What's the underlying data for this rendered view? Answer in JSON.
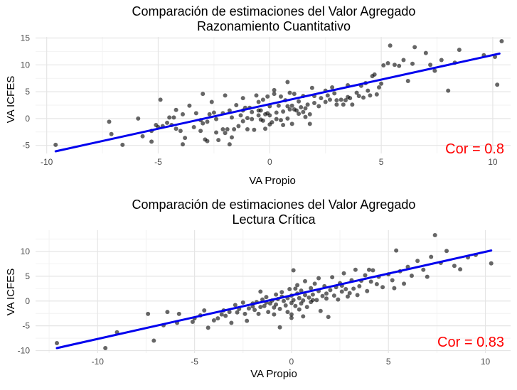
{
  "chart_data": [
    {
      "type": "scatter",
      "title": "Comparación de estimaciones del Valor Agregado",
      "subtitle": "Razonamiento Cuantitativo",
      "xlabel": "VA Propio",
      "ylabel": "VA ICFES",
      "xlim": [
        -10.5,
        10.8
      ],
      "ylim": [
        -6.5,
        15.2
      ],
      "xticks": [
        -10,
        -5,
        0,
        5,
        10
      ],
      "yticks": [
        -5,
        0,
        5,
        10,
        15
      ],
      "grid": true,
      "colors": {
        "points": "#000000",
        "line": "#0000ee",
        "annotation": "#ff0000"
      },
      "annotation": "Cor = 0.8",
      "fit_line": {
        "x": [
          -9.6,
          10.3
        ],
        "y": [
          -6.1,
          12.1
        ]
      },
      "points": [
        [
          -9.6,
          -4.9
        ],
        [
          -7.2,
          -0.6
        ],
        [
          -7.1,
          -2.9
        ],
        [
          -6.6,
          -4.9
        ],
        [
          -5.9,
          0.0
        ],
        [
          -5.7,
          -3.3
        ],
        [
          -5.3,
          -2.3
        ],
        [
          -5.3,
          -4.3
        ],
        [
          -5.1,
          -1.2
        ],
        [
          -5.0,
          -1.6
        ],
        [
          -4.9,
          3.5
        ],
        [
          -4.6,
          -0.8
        ],
        [
          -4.5,
          0.2
        ],
        [
          -4.4,
          -1.2
        ],
        [
          -4.3,
          0.2
        ],
        [
          -4.2,
          -1.9
        ],
        [
          -4.2,
          1.6
        ],
        [
          -4.0,
          -2.3
        ],
        [
          -3.9,
          -4.8
        ],
        [
          -3.9,
          0.8
        ],
        [
          -3.8,
          -3.6
        ],
        [
          -3.6,
          2.4
        ],
        [
          -3.4,
          -1.6
        ],
        [
          -3.3,
          1.0
        ],
        [
          -3.1,
          -2.3
        ],
        [
          -3.0,
          -0.9
        ],
        [
          -3.0,
          4.6
        ],
        [
          -2.9,
          -3.9
        ],
        [
          -2.8,
          -4.2
        ],
        [
          -2.8,
          -0.6
        ],
        [
          -2.7,
          0.8
        ],
        [
          -2.6,
          3.1
        ],
        [
          -2.5,
          1.1
        ],
        [
          -2.4,
          -0.1
        ],
        [
          -2.4,
          -2.6
        ],
        [
          -2.3,
          -4.0
        ],
        [
          -2.1,
          -2.0
        ],
        [
          -2.0,
          -2.7
        ],
        [
          -2.0,
          4.3
        ],
        [
          -1.9,
          -2.0
        ],
        [
          -1.8,
          -4.8
        ],
        [
          -1.8,
          1.5
        ],
        [
          -1.7,
          -3.5
        ],
        [
          -1.7,
          0.2
        ],
        [
          -1.6,
          -2.0
        ],
        [
          -1.5,
          2.5
        ],
        [
          -1.4,
          -1.4
        ],
        [
          -1.3,
          0.6
        ],
        [
          -1.2,
          1.5
        ],
        [
          -1.2,
          3.8
        ],
        [
          -1.1,
          2.0
        ],
        [
          -1.0,
          -2.0
        ],
        [
          -1.0,
          0.1
        ],
        [
          -0.9,
          2.0
        ],
        [
          -0.8,
          1.2
        ],
        [
          -0.8,
          -0.1
        ],
        [
          -0.7,
          -2.1
        ],
        [
          -0.6,
          4.3
        ],
        [
          -0.5,
          0.6
        ],
        [
          -0.5,
          1.5
        ],
        [
          -0.4,
          -0.2
        ],
        [
          -0.3,
          -0.4
        ],
        [
          -0.3,
          3.5
        ],
        [
          -0.2,
          -1.9
        ],
        [
          -0.1,
          1.0
        ],
        [
          -0.1,
          4.1
        ],
        [
          0.0,
          -1.1
        ],
        [
          -0.2,
          0.8
        ],
        [
          0.0,
          0.6
        ],
        [
          0.0,
          2.3
        ],
        [
          0.1,
          -0.7
        ],
        [
          0.2,
          5.3
        ],
        [
          0.2,
          4.6
        ],
        [
          0.3,
          1.1
        ],
        [
          0.3,
          -0.1
        ],
        [
          0.4,
          2.4
        ],
        [
          0.5,
          -0.3
        ],
        [
          0.5,
          4.1
        ],
        [
          0.6,
          -1.2
        ],
        [
          0.6,
          1.3
        ],
        [
          0.7,
          3.4
        ],
        [
          0.8,
          0.0
        ],
        [
          0.8,
          2.3
        ],
        [
          0.8,
          6.8
        ],
        [
          0.9,
          1.7
        ],
        [
          1.0,
          -1.0
        ],
        [
          1.0,
          2.4
        ],
        [
          1.1,
          4.6
        ],
        [
          1.2,
          1.5
        ],
        [
          1.3,
          3.2
        ],
        [
          1.3,
          0.9
        ],
        [
          1.4,
          2.1
        ],
        [
          1.5,
          4.2
        ],
        [
          1.5,
          1.2
        ],
        [
          1.6,
          1.9
        ],
        [
          1.7,
          2.6
        ],
        [
          1.8,
          0.8
        ],
        [
          1.8,
          -1.0
        ],
        [
          1.9,
          5.7
        ],
        [
          2.0,
          4.2
        ],
        [
          2.2,
          2.3
        ],
        [
          2.3,
          3.8
        ],
        [
          2.5,
          3.1
        ],
        [
          2.5,
          5.2
        ],
        [
          2.6,
          4.3
        ],
        [
          2.7,
          3.5
        ],
        [
          2.9,
          4.7
        ],
        [
          3.0,
          2.6
        ],
        [
          3.2,
          3.5
        ],
        [
          3.3,
          2.6
        ],
        [
          3.4,
          3.4
        ],
        [
          3.5,
          4.0
        ],
        [
          3.6,
          3.8
        ],
        [
          3.7,
          2.6
        ],
        [
          3.9,
          4.8
        ],
        [
          4.0,
          4.2
        ],
        [
          4.1,
          6.1
        ],
        [
          4.2,
          3.9
        ],
        [
          4.3,
          6.6
        ],
        [
          4.4,
          5.2
        ],
        [
          4.5,
          4.3
        ],
        [
          4.6,
          7.9
        ],
        [
          4.7,
          8.2
        ],
        [
          4.9,
          5.8
        ],
        [
          5.0,
          6.5
        ],
        [
          5.1,
          9.9
        ],
        [
          5.3,
          10.3
        ],
        [
          5.4,
          13.6
        ],
        [
          5.6,
          10.0
        ],
        [
          5.8,
          9.8
        ],
        [
          6.0,
          10.9
        ],
        [
          6.2,
          7.0
        ],
        [
          6.4,
          10.2
        ],
        [
          6.5,
          13.3
        ],
        [
          7.0,
          12.2
        ],
        [
          7.2,
          10.0
        ],
        [
          7.4,
          8.9
        ],
        [
          7.7,
          10.9
        ],
        [
          8.0,
          5.2
        ],
        [
          8.3,
          10.4
        ],
        [
          8.5,
          12.8
        ],
        [
          9.6,
          11.8
        ],
        [
          10.1,
          11.5
        ],
        [
          10.2,
          6.3
        ],
        [
          10.4,
          14.4
        ],
        [
          3.0,
          3.4
        ],
        [
          2.0,
          2.9
        ],
        [
          1.1,
          1.7
        ],
        [
          -0.4,
          1.5
        ],
        [
          -2.1,
          1.0
        ],
        [
          -3.1,
          -0.3
        ],
        [
          -4.8,
          -1.4
        ],
        [
          -1.2,
          -0.5
        ],
        [
          0.9,
          4.8
        ],
        [
          2.8,
          5.8
        ],
        [
          4.8,
          4.5
        ],
        [
          -0.5,
          3.1
        ],
        [
          1.6,
          0.3
        ],
        [
          3.5,
          6.2
        ]
      ]
    },
    {
      "type": "scatter",
      "title": "Comparación de estimaciones del Valor Agregado",
      "subtitle": "Lectura Crítica",
      "xlabel": "VA Propio",
      "ylabel": "VA ICFES",
      "xlim": [
        -13.2,
        11.3
      ],
      "ylim": [
        -10.5,
        14.3
      ],
      "xticks": [
        -10,
        -5,
        0,
        5,
        10
      ],
      "yticks": [
        -10,
        -5,
        0,
        5,
        10
      ],
      "grid": true,
      "colors": {
        "points": "#000000",
        "line": "#0000ee",
        "annotation": "#ff0000"
      },
      "annotation": "Cor = 0.83",
      "fit_line": {
        "x": [
          -12.1,
          10.3
        ],
        "y": [
          -9.5,
          10.2
        ]
      },
      "points": [
        [
          -12.1,
          -8.5
        ],
        [
          -9.6,
          -9.5
        ],
        [
          -9.0,
          -6.3
        ],
        [
          -7.4,
          -2.6
        ],
        [
          -7.1,
          -8.0
        ],
        [
          -6.6,
          -4.9
        ],
        [
          -6.4,
          -2.2
        ],
        [
          -5.9,
          -4.4
        ],
        [
          -5.8,
          -2.6
        ],
        [
          -5.1,
          -4.2
        ],
        [
          -5.0,
          -3.5
        ],
        [
          -4.5,
          -1.9
        ],
        [
          -4.3,
          -5.4
        ],
        [
          -4.0,
          -3.9
        ],
        [
          -3.8,
          -3.5
        ],
        [
          -3.5,
          -1.9
        ],
        [
          -3.4,
          -3.0
        ],
        [
          -3.2,
          -2.2
        ],
        [
          -3.1,
          -4.4
        ],
        [
          -2.9,
          -0.8
        ],
        [
          -2.8,
          -2.3
        ],
        [
          -2.7,
          -1.6
        ],
        [
          -2.5,
          -0.3
        ],
        [
          -2.4,
          -2.6
        ],
        [
          -2.3,
          -4.0
        ],
        [
          -2.2,
          -1.5
        ],
        [
          -2.0,
          -0.5
        ],
        [
          -1.9,
          -1.8
        ],
        [
          -1.8,
          -0.2
        ],
        [
          -1.7,
          -2.6
        ],
        [
          -1.6,
          -1.2
        ],
        [
          -1.5,
          0.3
        ],
        [
          -1.4,
          -1.0
        ],
        [
          -1.3,
          0.8
        ],
        [
          -1.2,
          -2.2
        ],
        [
          -1.1,
          -0.5
        ],
        [
          -1.0,
          0.1
        ],
        [
          -0.9,
          -1.3
        ],
        [
          -0.8,
          1.3
        ],
        [
          -0.8,
          -0.7
        ],
        [
          -0.7,
          0.4
        ],
        [
          -0.6,
          -1.6
        ],
        [
          -0.6,
          -5.3
        ],
        [
          -0.5,
          1.8
        ],
        [
          -0.4,
          0.0
        ],
        [
          -0.3,
          -0.9
        ],
        [
          -0.2,
          0.6
        ],
        [
          -0.2,
          -2.2
        ],
        [
          -0.1,
          2.4
        ],
        [
          0.0,
          -0.4
        ],
        [
          0.0,
          1.1
        ],
        [
          0.0,
          -3.4
        ],
        [
          0.1,
          0.2
        ],
        [
          0.1,
          6.2
        ],
        [
          0.2,
          -1.0
        ],
        [
          0.3,
          1.5
        ],
        [
          0.3,
          3.2
        ],
        [
          0.4,
          0.6
        ],
        [
          0.5,
          -0.5
        ],
        [
          0.5,
          2.1
        ],
        [
          0.6,
          0.1
        ],
        [
          0.7,
          4.0
        ],
        [
          0.7,
          1.2
        ],
        [
          0.8,
          -1.2
        ],
        [
          0.9,
          0.7
        ],
        [
          1.0,
          2.6
        ],
        [
          1.0,
          -0.2
        ],
        [
          1.1,
          1.3
        ],
        [
          1.2,
          3.5
        ],
        [
          1.3,
          0.2
        ],
        [
          1.4,
          2.0
        ],
        [
          1.5,
          -2.0
        ],
        [
          1.6,
          1.0
        ],
        [
          1.7,
          3.0
        ],
        [
          1.8,
          0.5
        ],
        [
          1.9,
          -3.2
        ],
        [
          2.0,
          2.2
        ],
        [
          2.1,
          4.8
        ],
        [
          2.2,
          1.1
        ],
        [
          2.3,
          2.8
        ],
        [
          2.4,
          0.3
        ],
        [
          2.5,
          3.6
        ],
        [
          2.6,
          1.9
        ],
        [
          2.7,
          5.6
        ],
        [
          2.8,
          2.4
        ],
        [
          3.0,
          1.6
        ],
        [
          3.1,
          4.2
        ],
        [
          3.2,
          2.5
        ],
        [
          3.3,
          6.3
        ],
        [
          3.5,
          3.0
        ],
        [
          3.6,
          4.1
        ],
        [
          3.8,
          5.2
        ],
        [
          3.9,
          2.0
        ],
        [
          4.1,
          3.9
        ],
        [
          4.2,
          6.2
        ],
        [
          4.4,
          3.4
        ],
        [
          4.5,
          4.9
        ],
        [
          4.7,
          2.8
        ],
        [
          5.0,
          5.4
        ],
        [
          5.2,
          4.2
        ],
        [
          5.3,
          2.6
        ],
        [
          5.4,
          10.2
        ],
        [
          5.6,
          6.0
        ],
        [
          5.8,
          3.5
        ],
        [
          6.0,
          6.9
        ],
        [
          6.2,
          5.1
        ],
        [
          6.5,
          8.1
        ],
        [
          6.8,
          6.3
        ],
        [
          7.0,
          4.9
        ],
        [
          7.2,
          8.9
        ],
        [
          7.4,
          13.3
        ],
        [
          7.7,
          7.7
        ],
        [
          8.0,
          10.1
        ],
        [
          8.4,
          7.1
        ],
        [
          8.7,
          6.4
        ],
        [
          9.1,
          8.8
        ],
        [
          9.5,
          9.3
        ],
        [
          10.3,
          7.6
        ],
        [
          -2.0,
          -1.1
        ],
        [
          -1.3,
          -0.3
        ],
        [
          -0.5,
          0.9
        ],
        [
          0.4,
          -1.7
        ],
        [
          1.1,
          0.2
        ],
        [
          1.8,
          1.5
        ],
        [
          2.6,
          3.1
        ],
        [
          3.4,
          1.2
        ],
        [
          -3.6,
          -2.7
        ],
        [
          -4.7,
          -2.9
        ],
        [
          0.0,
          -2.7
        ],
        [
          0.2,
          2.5
        ],
        [
          -0.9,
          -2.7
        ],
        [
          1.4,
          4.6
        ],
        [
          2.9,
          0.9
        ],
        [
          4.0,
          6.3
        ],
        [
          -1.6,
          1.9
        ],
        [
          0.6,
          -3.1
        ]
      ]
    }
  ]
}
